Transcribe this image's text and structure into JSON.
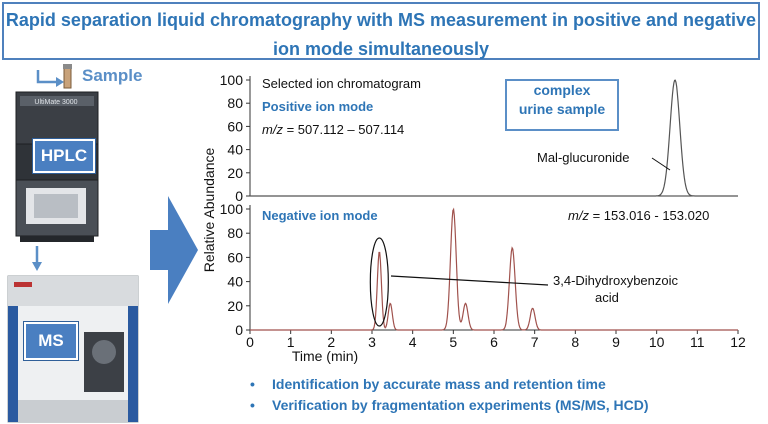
{
  "title": {
    "line1": "Rapid separation liquid chromatography with MS measurement in positive and negative",
    "line2": "ion mode simultaneously"
  },
  "workflow": {
    "sample_label": "Sample",
    "hplc_label": "HPLC",
    "ms_label": "MS",
    "instrument_text": "UltiMate 3000"
  },
  "callout": {
    "line1": "complex",
    "line2": "urine sample"
  },
  "bullets": [
    "Identification by accurate mass and retention time",
    "Verification by fragmentation experiments (MS/MS, HCD)"
  ],
  "colors": {
    "accent": "#2e75b6",
    "box_fill": "#4a7fc1",
    "positive_trace": "#555555",
    "negative_trace": "#a0524d"
  },
  "chart_data": {
    "type": "line",
    "ylabel": "Relative Abundance",
    "xlabel": "Time (min)",
    "xlim": [
      0,
      12
    ],
    "x_ticks": [
      "0",
      "1",
      "2",
      "3",
      "4",
      "5",
      "6",
      "7",
      "8",
      "9",
      "10",
      "11",
      "12"
    ],
    "y_ticks": [
      "0",
      "20",
      "40",
      "60",
      "80",
      "100"
    ],
    "panels": [
      {
        "chart_title": "Selected ion chromatogram",
        "mode": "Positive ion mode",
        "mz_label": "m/z",
        "mz_range": " = 507.112 – 507.114",
        "ylim": [
          0,
          100
        ],
        "annotations": [
          "Mal-glucuronide"
        ],
        "series": [
          {
            "peaks": [
              {
                "t": 10.45,
                "height": 100,
                "width": 0.12
              }
            ]
          }
        ]
      },
      {
        "mode": "Negative  ion mode",
        "mz_label": "m/z",
        "mz_range": " = 153.016 - 153.020",
        "ylim": [
          0,
          100
        ],
        "annotations": [
          "3,4-Dihydroxybenzoic",
          "acid"
        ],
        "series": [
          {
            "peaks": [
              {
                "t": 3.18,
                "height": 65,
                "width": 0.05
              },
              {
                "t": 3.45,
                "height": 22,
                "width": 0.05
              },
              {
                "t": 5.0,
                "height": 100,
                "width": 0.07
              },
              {
                "t": 5.3,
                "height": 22,
                "width": 0.06
              },
              {
                "t": 6.45,
                "height": 68,
                "width": 0.07
              },
              {
                "t": 6.95,
                "height": 18,
                "width": 0.06
              }
            ]
          }
        ]
      }
    ]
  }
}
